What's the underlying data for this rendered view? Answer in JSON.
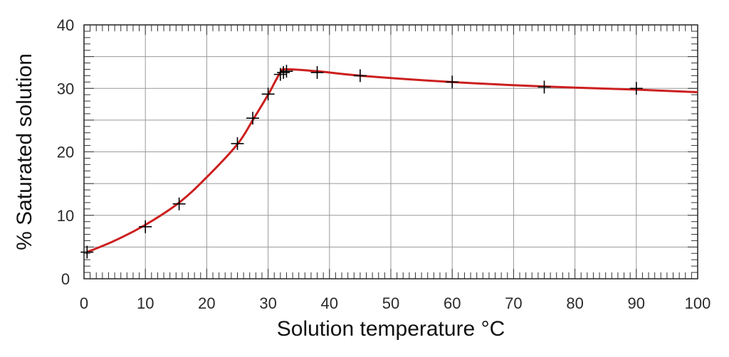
{
  "chart_data": {
    "type": "line",
    "title": "",
    "xlabel": "Solution temperature °C",
    "ylabel": "% Saturated solution",
    "xlim": [
      0,
      100
    ],
    "ylim": [
      0,
      40
    ],
    "x_ticks": [
      0,
      10,
      20,
      30,
      40,
      50,
      60,
      70,
      80,
      90,
      100
    ],
    "y_ticks": [
      0,
      10,
      20,
      30,
      40
    ],
    "grid": true,
    "legend": "none",
    "series": [
      {
        "type": "line",
        "color": "#cc1f1f",
        "x": [
          0.5,
          5,
          10,
          15.5,
          20,
          25,
          27.5,
          30,
          32,
          33,
          38,
          45,
          60,
          75,
          90,
          100
        ],
        "y": [
          4.2,
          6.0,
          8.5,
          12.0,
          16.0,
          21.2,
          25.0,
          29.0,
          32.5,
          33.0,
          32.7,
          32.0,
          31.0,
          30.3,
          29.8,
          29.4
        ]
      },
      {
        "type": "scatter",
        "marker": "+",
        "color": "#000000",
        "x": [
          0.5,
          10,
          15.5,
          25,
          27.5,
          30,
          32,
          32.5,
          33,
          38,
          45,
          60,
          75,
          90
        ],
        "y": [
          4.2,
          8.2,
          11.8,
          21.3,
          25.3,
          29.1,
          32.2,
          32.5,
          32.7,
          32.5,
          32.0,
          31.0,
          30.2,
          30.0
        ]
      }
    ]
  }
}
